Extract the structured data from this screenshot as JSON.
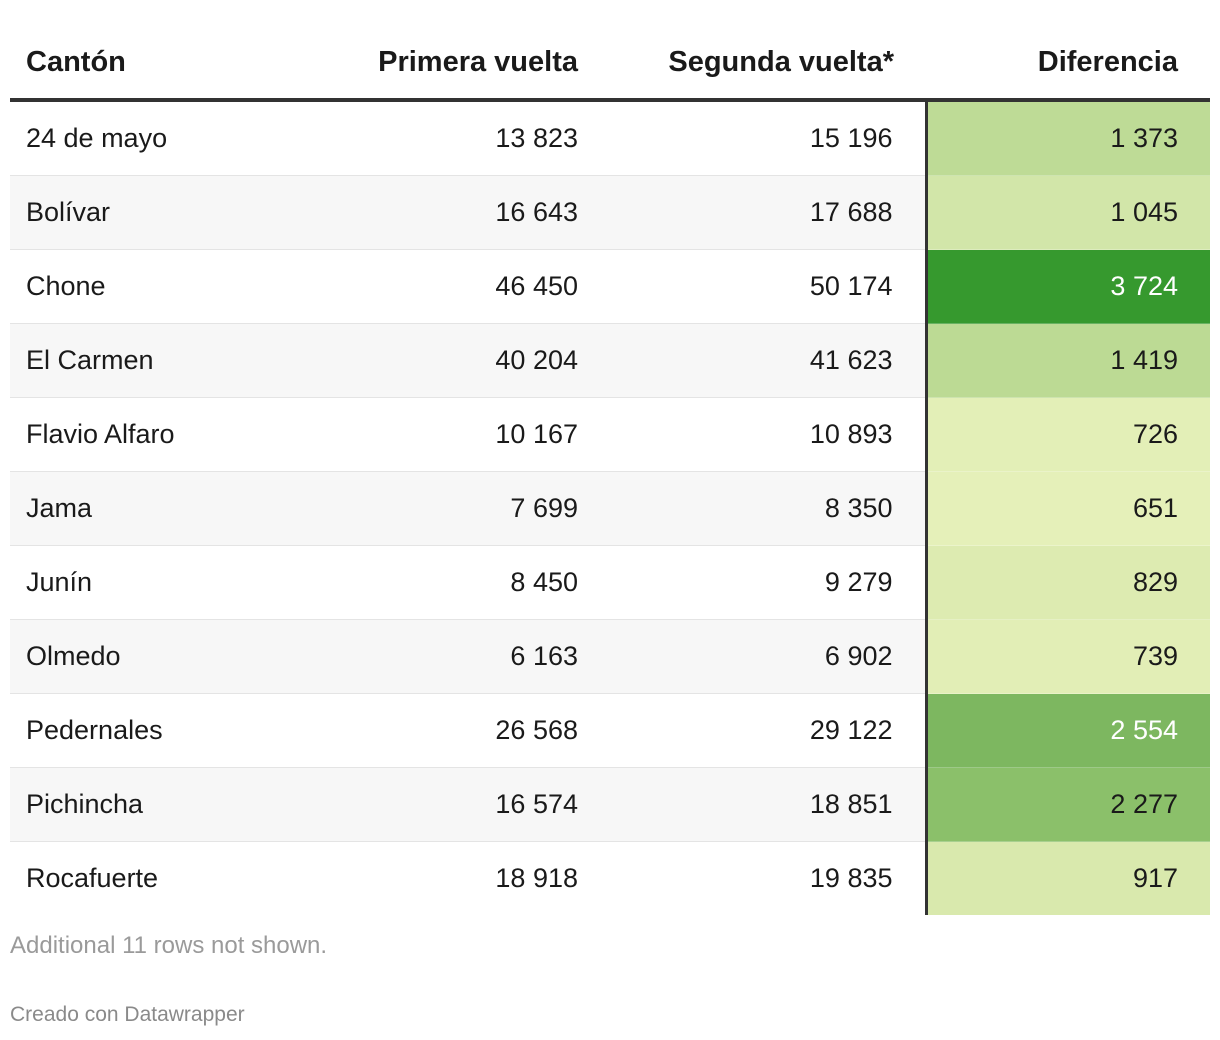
{
  "chart_data": {
    "type": "table",
    "columns": [
      "Cantón",
      "Primera vuelta",
      "Segunda vuelta*",
      "Diferencia"
    ],
    "rows": [
      {
        "canton": "24 de mayo",
        "primera": "13 823",
        "segunda": "15 196",
        "diferencia": "1 373",
        "diff_value": 1373,
        "color": "#bedb96",
        "text_color": "#1a1a1a"
      },
      {
        "canton": "Bolívar",
        "primera": "16 643",
        "segunda": "17 688",
        "diferencia": "1 045",
        "diff_value": 1045,
        "color": "#d2e6a9",
        "text_color": "#1a1a1a"
      },
      {
        "canton": "Chone",
        "primera": "46 450",
        "segunda": "50 174",
        "diferencia": "3 724",
        "diff_value": 3724,
        "color": "#36992e",
        "text_color": "#ffffff"
      },
      {
        "canton": "El Carmen",
        "primera": "40 204",
        "segunda": "41 623",
        "diferencia": "1 419",
        "diff_value": 1419,
        "color": "#bcda94",
        "text_color": "#1a1a1a"
      },
      {
        "canton": "Flavio Alfaro",
        "primera": "10 167",
        "segunda": "10 893",
        "diferencia": "726",
        "diff_value": 726,
        "color": "#e3efb7",
        "text_color": "#1a1a1a"
      },
      {
        "canton": "Jama",
        "primera": "7 699",
        "segunda": "8 350",
        "diferencia": "651",
        "diff_value": 651,
        "color": "#e5f0b9",
        "text_color": "#1a1a1a"
      },
      {
        "canton": "Junín",
        "primera": "8 450",
        "segunda": "9 279",
        "diferencia": "829",
        "diff_value": 829,
        "color": "#ddebb1",
        "text_color": "#1a1a1a"
      },
      {
        "canton": "Olmedo",
        "primera": "6 163",
        "segunda": "6 902",
        "diferencia": "739",
        "diff_value": 739,
        "color": "#e2eeb6",
        "text_color": "#1a1a1a"
      },
      {
        "canton": "Pedernales",
        "primera": "26 568",
        "segunda": "29 122",
        "diferencia": "2 554",
        "diff_value": 2554,
        "color": "#7db760",
        "text_color": "#ffffff"
      },
      {
        "canton": "Pichincha",
        "primera": "16 574",
        "segunda": "18 851",
        "diferencia": "2 277",
        "diff_value": 2277,
        "color": "#8bc06a",
        "text_color": "#1a1a1a"
      },
      {
        "canton": "Rocafuerte",
        "primera": "18 918",
        "segunda": "19 835",
        "diferencia": "917",
        "diff_value": 917,
        "color": "#d9e9ad",
        "text_color": "#1a1a1a"
      }
    ]
  },
  "table": {
    "notes": "Additional 11 rows not shown.",
    "credit": "Creado con Datawrapper"
  }
}
